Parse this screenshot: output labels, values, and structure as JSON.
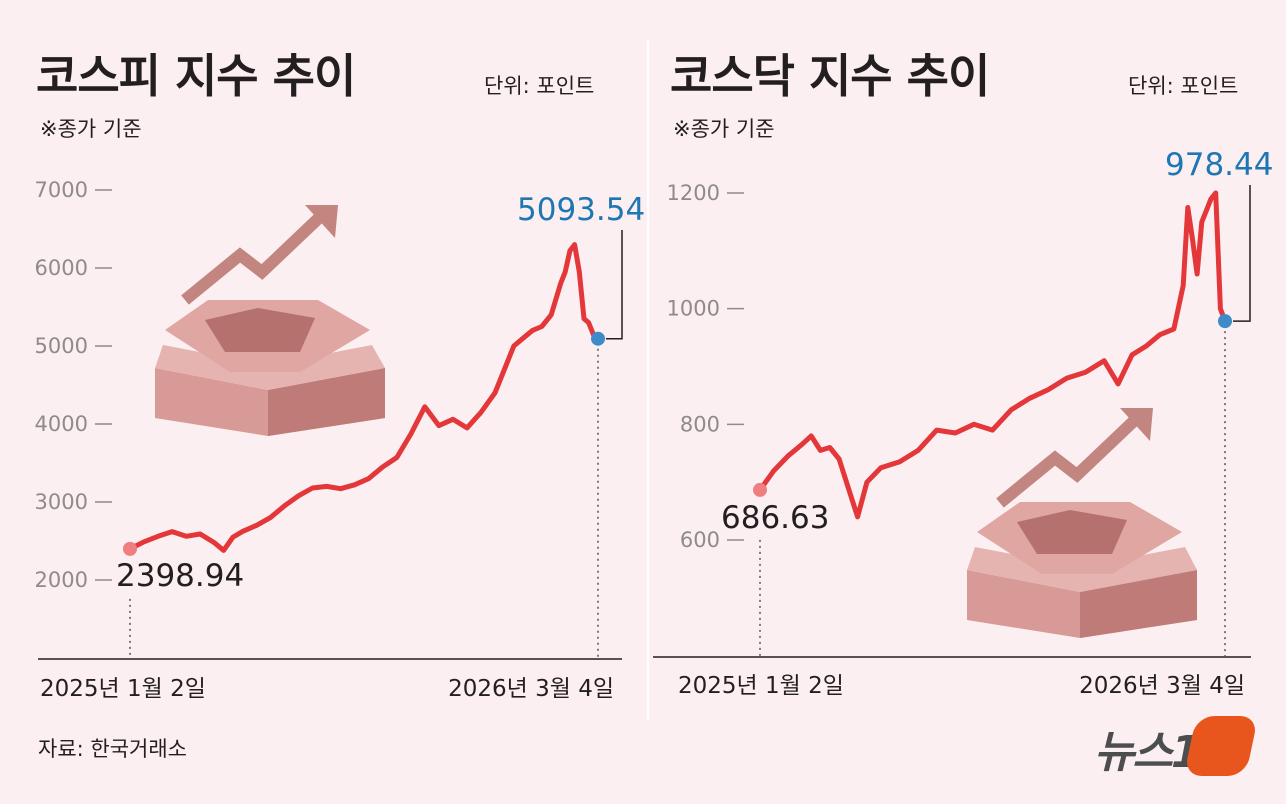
{
  "kospi": {
    "title": "코스피 지수 추이",
    "unit": "단위: 포인트",
    "note": "※종가 기준"
  },
  "kosdaq": {
    "title": "코스닥 지수 추이",
    "unit": "단위: 포인트",
    "note": "※종가 기준"
  },
  "source": "자료: 한국거래소",
  "logo": {
    "text": "뉴스1",
    "color": "#e8561d"
  },
  "colors": {
    "line": "#e4373a",
    "start_dot": "#f07d80",
    "end_dot": "#3d8cc9",
    "end_label": "#1f76b4",
    "decoration": "#c98884"
  },
  "icons": {
    "decoration": "rising-arrow-over-pedestal"
  },
  "chart_data": [
    {
      "id": "kospi",
      "type": "line",
      "title": "코스피 지수 추이",
      "ylabel": "단위: 포인트",
      "ylim": [
        1700,
        7000
      ],
      "yticks": [
        2000,
        3000,
        4000,
        5000,
        6000,
        7000
      ],
      "ytick_labels": [
        "2000",
        "3000",
        "4000",
        "5000",
        "6000",
        "7000"
      ],
      "x": [
        0,
        0.03,
        0.06,
        0.09,
        0.12,
        0.15,
        0.18,
        0.2,
        0.22,
        0.24,
        0.27,
        0.3,
        0.33,
        0.36,
        0.39,
        0.42,
        0.45,
        0.48,
        0.51,
        0.54,
        0.57,
        0.6,
        0.63,
        0.66,
        0.69,
        0.72,
        0.75,
        0.78,
        0.8,
        0.82,
        0.84,
        0.86,
        0.88,
        0.9,
        0.92,
        0.93,
        0.94,
        0.95,
        0.96,
        0.97,
        0.98,
        0.99,
        1.0
      ],
      "values": [
        2398.94,
        2490,
        2560,
        2620,
        2560,
        2590,
        2480,
        2380,
        2550,
        2620,
        2700,
        2800,
        2950,
        3080,
        3180,
        3200,
        3170,
        3220,
        3300,
        3450,
        3570,
        3870,
        4220,
        3980,
        4060,
        3950,
        4150,
        4400,
        4700,
        5000,
        5100,
        5200,
        5250,
        5400,
        5800,
        5950,
        6220,
        6300,
        5950,
        5350,
        5300,
        5150,
        5093.54
      ],
      "start_label": "2398.94",
      "end_label": "5093.54",
      "x_start_label": "2025년 1월 2일",
      "x_end_label": "2026년 3월 4일",
      "grid": false,
      "legend": "none"
    },
    {
      "id": "kosdaq",
      "type": "line",
      "title": "코스닥 지수 추이",
      "ylabel": "단위: 포인트",
      "ylim": [
        510,
        1220
      ],
      "yticks": [
        600,
        800,
        1000,
        1200
      ],
      "ytick_labels": [
        "600",
        "800",
        "1000",
        "1200"
      ],
      "x": [
        0,
        0.03,
        0.06,
        0.09,
        0.11,
        0.13,
        0.15,
        0.17,
        0.19,
        0.21,
        0.23,
        0.26,
        0.3,
        0.34,
        0.38,
        0.42,
        0.46,
        0.5,
        0.54,
        0.58,
        0.62,
        0.66,
        0.7,
        0.74,
        0.77,
        0.8,
        0.83,
        0.86,
        0.89,
        0.91,
        0.92,
        0.93,
        0.94,
        0.95,
        0.96,
        0.97,
        0.98,
        0.99,
        1.0
      ],
      "values": [
        686.63,
        720,
        745,
        765,
        780,
        755,
        760,
        740,
        690,
        640,
        700,
        725,
        735,
        755,
        790,
        785,
        800,
        790,
        825,
        845,
        860,
        880,
        890,
        910,
        870,
        920,
        935,
        955,
        965,
        1040,
        1175,
        1120,
        1060,
        1150,
        1170,
        1190,
        1200,
        1000,
        978.44
      ],
      "start_label": "686.63",
      "end_label": "978.44",
      "x_start_label": "2025년 1월 2일",
      "x_end_label": "2026년 3월 4일",
      "grid": false,
      "legend": "none"
    }
  ]
}
